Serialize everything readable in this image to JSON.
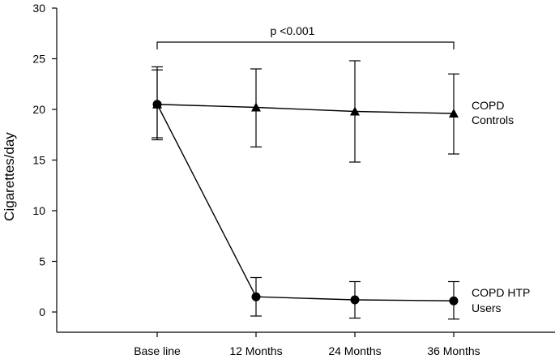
{
  "chart_data": {
    "type": "line",
    "title": "",
    "xlabel": "",
    "ylabel": "Cigarettes/day",
    "ylim": [
      0,
      30
    ],
    "yticks": [
      0,
      5,
      10,
      15,
      20,
      25,
      30
    ],
    "categories": [
      "Base line",
      "12 Months",
      "24 Months",
      "36 Months"
    ],
    "grid": false,
    "legend": "none",
    "series": [
      {
        "name": "COPD Controls",
        "label_lines": [
          "COPD",
          "Controls"
        ],
        "marker": "triangle",
        "values": [
          20.5,
          20.2,
          19.8,
          19.6
        ],
        "error_low": [
          17.0,
          16.3,
          14.8,
          15.6
        ],
        "error_high": [
          24.2,
          24.0,
          24.8,
          23.5
        ]
      },
      {
        "name": "COPD HTP Users",
        "label_lines": [
          "COPD HTP",
          "Users"
        ],
        "marker": "circle",
        "values": [
          20.5,
          1.5,
          1.2,
          1.1
        ],
        "error_low": [
          17.2,
          -0.4,
          -0.6,
          -0.7
        ],
        "error_high": [
          23.9,
          3.4,
          3.0,
          3.0
        ]
      }
    ],
    "annotations": [
      {
        "text": "p <0.001",
        "from_category": "Base line",
        "to_category": "36 Months"
      }
    ],
    "colors": {
      "line": "#000000",
      "background": "#ffffff"
    }
  }
}
